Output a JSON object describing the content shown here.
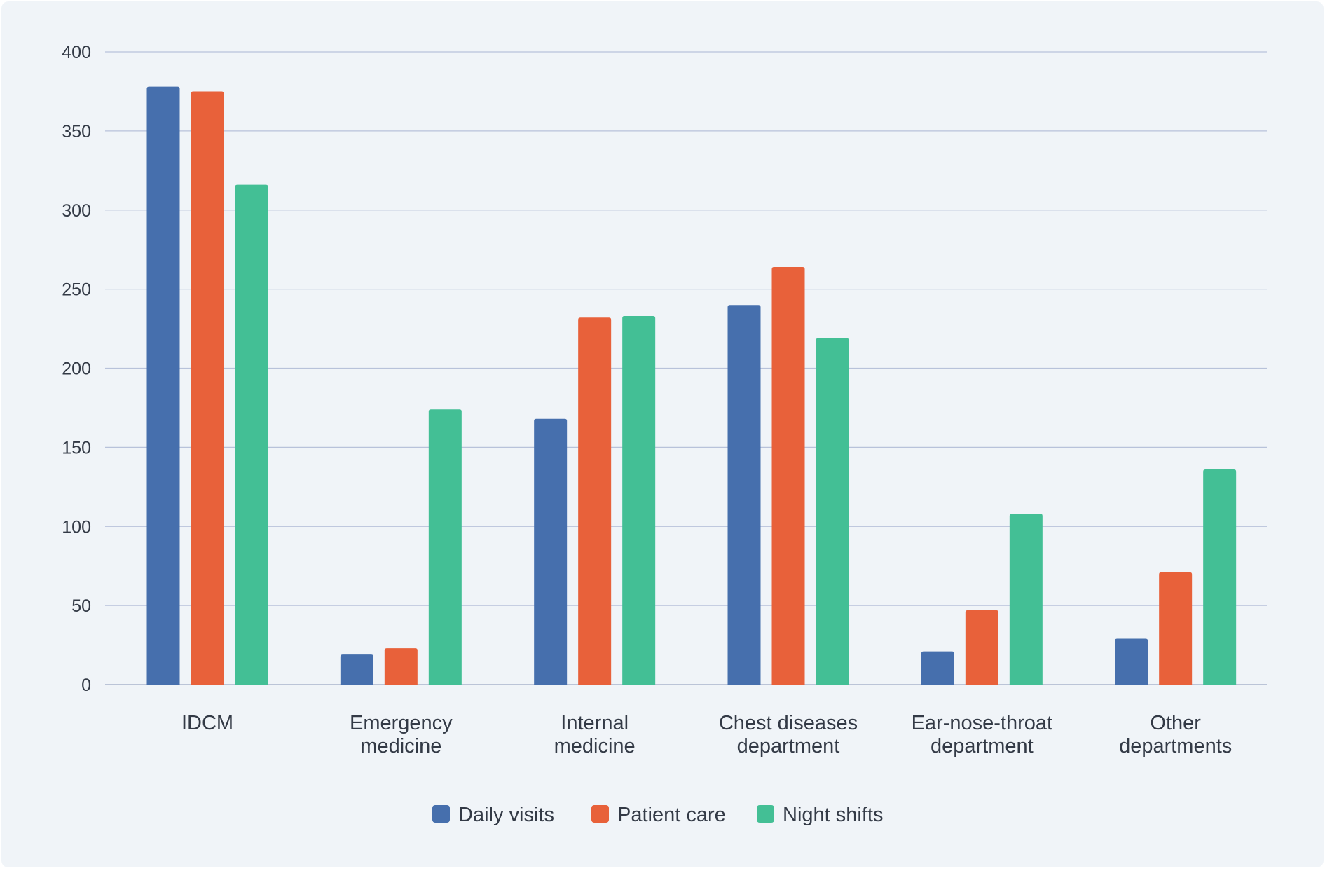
{
  "chart_data": {
    "type": "bar",
    "title": "",
    "xlabel": "",
    "ylabel": "",
    "ylim": [
      0,
      400
    ],
    "yticks": [
      0,
      50,
      100,
      150,
      200,
      250,
      300,
      350,
      400
    ],
    "grid": true,
    "legend_position": "bottom-center",
    "categories": [
      [
        "IDCM"
      ],
      [
        "Emergency",
        "medicine"
      ],
      [
        "Internal",
        "medicine"
      ],
      [
        "Chest diseases",
        "department"
      ],
      [
        "Ear-nose-throat",
        "department"
      ],
      [
        "Other",
        "departments"
      ]
    ],
    "series": [
      {
        "name": "Daily visits",
        "color": "#466fad",
        "values": [
          378,
          19,
          168,
          240,
          21,
          29
        ]
      },
      {
        "name": "Patient care",
        "color": "#e8613a",
        "values": [
          375,
          23,
          232,
          264,
          47,
          71
        ]
      },
      {
        "name": "Night shifts",
        "color": "#43bf95",
        "values": [
          316,
          174,
          233,
          219,
          108,
          136
        ]
      }
    ]
  }
}
